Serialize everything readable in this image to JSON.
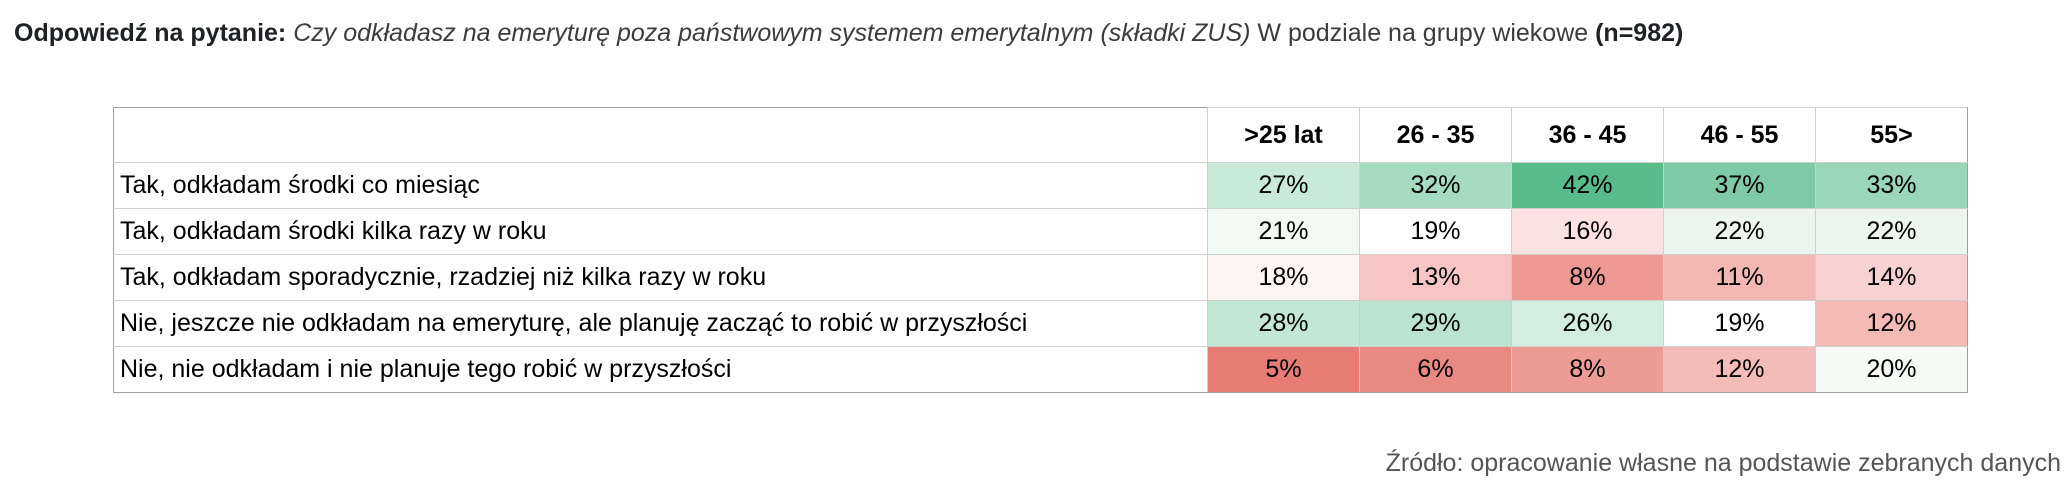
{
  "heading": {
    "lead": "Odpowiedź na pytanie:",
    "question": "Czy odkładasz na emeryturę poza państwowym systemem emerytalnym (składki ZUS)",
    "detail": "W podziale na grupy wiekowe",
    "count": "(n=982)"
  },
  "chart_data": {
    "type": "table",
    "title": "Odpowiedź na pytanie: Czy odkładasz na emeryturę poza państwowym systemem emerytalnym (składki ZUS) W podziale na grupy wiekowe (n=982)",
    "columns": [
      ">25 lat",
      "26 - 35",
      "36 - 45",
      "46 - 55",
      "55>"
    ],
    "rows": [
      {
        "label": "Tak, odkładam środki co miesiąc",
        "values": [
          "27%",
          "32%",
          "42%",
          "37%",
          "33%"
        ],
        "colors": [
          "#c9ead9",
          "#a5dcbf",
          "#57bb8a",
          "#7dcaa4",
          "#9ad7b8"
        ]
      },
      {
        "label": "Tak, odkładam środki kilka razy w roku",
        "values": [
          "21%",
          "19%",
          "16%",
          "22%",
          "22%"
        ],
        "colors": [
          "#f1f9f4",
          "#ffffff",
          "#fbe1e0",
          "#eaf6ef",
          "#eaf6ef"
        ]
      },
      {
        "label": "Tak, odkładam sporadycznie, rzadziej niż kilka razy w roku",
        "values": [
          "18%",
          "13%",
          "8%",
          "11%",
          "14%"
        ],
        "colors": [
          "#fdf4f4",
          "#f5c6c3",
          "#ed9890",
          "#f3b8b4",
          "#f8d2d0"
        ]
      },
      {
        "label": "Nie, jeszcze nie odkładam na emeryturę, ale planuję zacząć to robić w przyszłości",
        "values": [
          "28%",
          "29%",
          "26%",
          "19%",
          "12%"
        ],
        "colors": [
          "#c2e7d3",
          "#bae4cd",
          "#d3eedf",
          "#ffffff",
          "#f3bab6"
        ]
      },
      {
        "label": "Nie, nie odkładam i nie planuje tego robić w przyszłości",
        "values": [
          "5%",
          "6%",
          "8%",
          "12%",
          "20%"
        ],
        "colors": [
          "#e67c73",
          "#e88a82",
          "#ec9c95",
          "#f4bcb8",
          "#f7fbf8"
        ]
      }
    ],
    "source": "Źródło: opracowanie własne na podstawie zebranych danych"
  }
}
